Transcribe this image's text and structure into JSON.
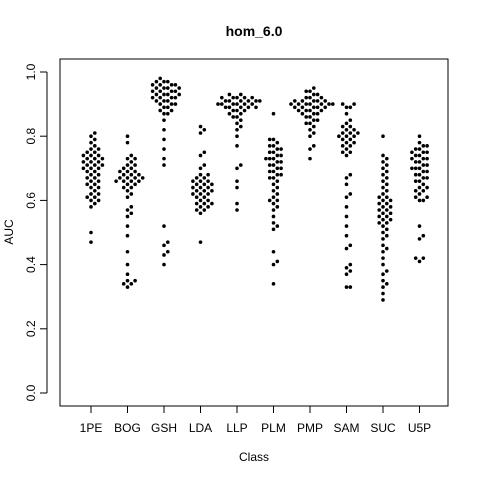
{
  "chart_data": {
    "type": "scatter",
    "style": "beeswarm",
    "title": "hom_6.0",
    "xlabel": "Class",
    "ylabel": "AUC",
    "ylim": [
      0,
      1
    ],
    "yticks": [
      0.0,
      0.2,
      0.4,
      0.6,
      0.8,
      1.0
    ],
    "ytick_labels": [
      "0.0",
      "0.2",
      "0.4",
      "0.6",
      "0.8",
      "1.0"
    ],
    "grid": false,
    "legend": "none",
    "point_color": "#000000",
    "categories": [
      "1PE",
      "BOG",
      "GSH",
      "LDA",
      "LLP",
      "PLM",
      "PMP",
      "SAM",
      "SUC",
      "U5P"
    ],
    "series": [
      {
        "category": "1PE",
        "values": [
          0.81,
          0.8,
          0.79,
          0.78,
          0.77,
          0.76,
          0.76,
          0.75,
          0.75,
          0.74,
          0.74,
          0.74,
          0.73,
          0.73,
          0.73,
          0.72,
          0.72,
          0.72,
          0.71,
          0.71,
          0.71,
          0.7,
          0.7,
          0.7,
          0.69,
          0.69,
          0.68,
          0.68,
          0.67,
          0.67,
          0.66,
          0.66,
          0.65,
          0.65,
          0.64,
          0.64,
          0.63,
          0.62,
          0.62,
          0.61,
          0.61,
          0.6,
          0.6,
          0.59,
          0.58,
          0.5,
          0.47
        ]
      },
      {
        "category": "BOG",
        "values": [
          0.8,
          0.78,
          0.74,
          0.73,
          0.73,
          0.72,
          0.71,
          0.71,
          0.7,
          0.7,
          0.69,
          0.69,
          0.69,
          0.68,
          0.68,
          0.68,
          0.67,
          0.67,
          0.67,
          0.67,
          0.66,
          0.66,
          0.66,
          0.66,
          0.65,
          0.65,
          0.64,
          0.64,
          0.63,
          0.62,
          0.61,
          0.58,
          0.57,
          0.56,
          0.55,
          0.52,
          0.49,
          0.44,
          0.4,
          0.37,
          0.35,
          0.35,
          0.34,
          0.34,
          0.33
        ]
      },
      {
        "category": "GSH",
        "values": [
          0.98,
          0.97,
          0.97,
          0.97,
          0.96,
          0.96,
          0.96,
          0.96,
          0.95,
          0.95,
          0.95,
          0.95,
          0.94,
          0.94,
          0.94,
          0.94,
          0.93,
          0.93,
          0.93,
          0.93,
          0.92,
          0.92,
          0.92,
          0.92,
          0.91,
          0.91,
          0.91,
          0.9,
          0.9,
          0.9,
          0.89,
          0.89,
          0.88,
          0.88,
          0.87,
          0.87,
          0.85,
          0.82,
          0.79,
          0.76,
          0.73,
          0.71,
          0.52,
          0.47,
          0.46,
          0.44,
          0.43,
          0.4
        ]
      },
      {
        "category": "LDA",
        "values": [
          0.83,
          0.82,
          0.81,
          0.75,
          0.74,
          0.71,
          0.7,
          0.68,
          0.68,
          0.67,
          0.67,
          0.66,
          0.66,
          0.66,
          0.65,
          0.65,
          0.65,
          0.64,
          0.64,
          0.64,
          0.63,
          0.63,
          0.63,
          0.62,
          0.62,
          0.62,
          0.61,
          0.61,
          0.6,
          0.6,
          0.59,
          0.59,
          0.59,
          0.58,
          0.58,
          0.57,
          0.57,
          0.56,
          0.47
        ]
      },
      {
        "category": "LLP",
        "values": [
          0.93,
          0.93,
          0.92,
          0.92,
          0.92,
          0.92,
          0.92,
          0.91,
          0.91,
          0.91,
          0.91,
          0.91,
          0.91,
          0.9,
          0.9,
          0.9,
          0.9,
          0.9,
          0.9,
          0.89,
          0.89,
          0.89,
          0.89,
          0.89,
          0.88,
          0.88,
          0.88,
          0.87,
          0.87,
          0.86,
          0.86,
          0.85,
          0.84,
          0.83,
          0.82,
          0.8,
          0.77,
          0.71,
          0.7,
          0.66,
          0.64,
          0.59,
          0.57
        ]
      },
      {
        "category": "PLM",
        "values": [
          0.87,
          0.79,
          0.79,
          0.78,
          0.77,
          0.77,
          0.76,
          0.76,
          0.75,
          0.75,
          0.74,
          0.74,
          0.73,
          0.73,
          0.73,
          0.72,
          0.72,
          0.71,
          0.71,
          0.7,
          0.7,
          0.69,
          0.69,
          0.68,
          0.68,
          0.67,
          0.67,
          0.66,
          0.65,
          0.64,
          0.63,
          0.62,
          0.61,
          0.6,
          0.6,
          0.59,
          0.58,
          0.57,
          0.55,
          0.53,
          0.52,
          0.51,
          0.44,
          0.41,
          0.4,
          0.34
        ]
      },
      {
        "category": "PMP",
        "values": [
          0.95,
          0.94,
          0.94,
          0.93,
          0.93,
          0.92,
          0.92,
          0.92,
          0.91,
          0.91,
          0.91,
          0.91,
          0.91,
          0.9,
          0.9,
          0.9,
          0.9,
          0.9,
          0.9,
          0.9,
          0.89,
          0.89,
          0.89,
          0.89,
          0.89,
          0.88,
          0.88,
          0.88,
          0.88,
          0.87,
          0.87,
          0.87,
          0.86,
          0.86,
          0.85,
          0.85,
          0.84,
          0.84,
          0.83,
          0.82,
          0.81,
          0.8,
          0.77,
          0.76,
          0.73
        ]
      },
      {
        "category": "SAM",
        "values": [
          0.9,
          0.9,
          0.89,
          0.89,
          0.87,
          0.85,
          0.84,
          0.83,
          0.83,
          0.82,
          0.82,
          0.81,
          0.81,
          0.81,
          0.8,
          0.8,
          0.8,
          0.79,
          0.79,
          0.78,
          0.78,
          0.77,
          0.77,
          0.76,
          0.75,
          0.75,
          0.74,
          0.68,
          0.67,
          0.65,
          0.62,
          0.61,
          0.58,
          0.55,
          0.52,
          0.49,
          0.46,
          0.45,
          0.4,
          0.39,
          0.38,
          0.37,
          0.33,
          0.33
        ]
      },
      {
        "category": "SUC",
        "values": [
          0.8,
          0.74,
          0.73,
          0.72,
          0.71,
          0.7,
          0.69,
          0.68,
          0.67,
          0.66,
          0.65,
          0.64,
          0.63,
          0.62,
          0.61,
          0.61,
          0.6,
          0.6,
          0.59,
          0.59,
          0.58,
          0.58,
          0.57,
          0.57,
          0.56,
          0.56,
          0.55,
          0.55,
          0.54,
          0.54,
          0.53,
          0.53,
          0.52,
          0.51,
          0.5,
          0.49,
          0.48,
          0.46,
          0.45,
          0.44,
          0.42,
          0.4,
          0.38,
          0.37,
          0.35,
          0.34,
          0.33,
          0.31,
          0.29
        ]
      },
      {
        "category": "U5P",
        "values": [
          0.8,
          0.78,
          0.77,
          0.77,
          0.76,
          0.76,
          0.75,
          0.75,
          0.75,
          0.74,
          0.74,
          0.73,
          0.73,
          0.73,
          0.72,
          0.72,
          0.71,
          0.71,
          0.7,
          0.7,
          0.7,
          0.69,
          0.69,
          0.68,
          0.68,
          0.67,
          0.67,
          0.66,
          0.66,
          0.65,
          0.64,
          0.64,
          0.63,
          0.63,
          0.62,
          0.61,
          0.61,
          0.6,
          0.6,
          0.52,
          0.49,
          0.48,
          0.42,
          0.42,
          0.41
        ]
      }
    ]
  }
}
